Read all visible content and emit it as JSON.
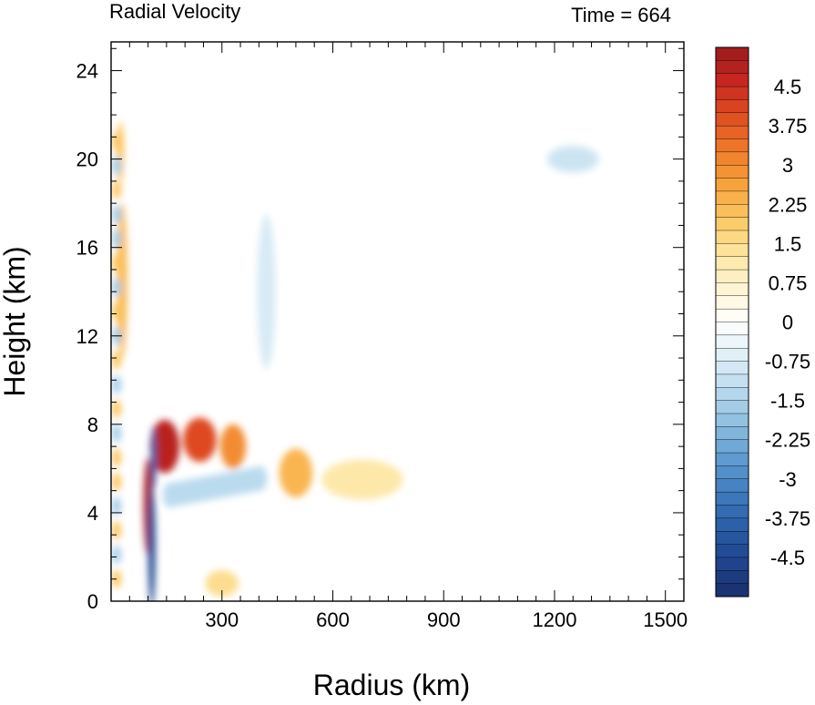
{
  "chart_data": {
    "type": "heatmap",
    "title": "Radial Velocity",
    "title_right": "Time = 664",
    "xlabel": "Radius (km)",
    "ylabel": "Height (km)",
    "xlim": [
      0,
      1550
    ],
    "ylim": [
      0,
      25.3
    ],
    "x_ticks": [
      300,
      600,
      900,
      1200,
      1500
    ],
    "y_ticks": [
      0,
      4,
      8,
      12,
      16,
      20,
      24
    ],
    "colorbar": {
      "min": -5.25,
      "max": 5.25,
      "step": 0.25,
      "label_values": [
        "4.5",
        "3.75",
        "3",
        "2.25",
        "1.5",
        "0.75",
        "0",
        "-0.75",
        "-1.5",
        "-2.25",
        "-3",
        "-3.75",
        "-4.5"
      ],
      "colors": [
        "#1a2f6b",
        "#20448e",
        "#2a5da6",
        "#3f7bbd",
        "#5f9bd0",
        "#8cbde0",
        "#b9daee",
        "#e0eff7",
        "#ffffff",
        "#fdf3d2",
        "#fde6a0",
        "#fbc863",
        "#f7a33c",
        "#ef7a2a",
        "#e04e22",
        "#c7271f",
        "#9a1b1e"
      ]
    },
    "features": [
      {
        "r": 145,
        "z": 7.0,
        "v": 4.8
      },
      {
        "r": 240,
        "z": 7.3,
        "v": 4.0
      },
      {
        "r": 330,
        "z": 7.0,
        "v": 3.0
      },
      {
        "r": 100,
        "z": 4.3,
        "v": 5.0
      },
      {
        "r": 110,
        "z": 2.5,
        "v": -4.5
      },
      {
        "r": 115,
        "z": 6.5,
        "v": -4.0
      },
      {
        "r": 30,
        "z": 14.5,
        "v": 2.2
      },
      {
        "r": 25,
        "z": 20.3,
        "v": 2.0
      },
      {
        "r": 500,
        "z": 5.8,
        "v": 2.3
      },
      {
        "r": 680,
        "z": 5.5,
        "v": 1.2
      },
      {
        "r": 1250,
        "z": 20.0,
        "v": -1.0
      },
      {
        "r": 420,
        "z": 14.0,
        "v": -0.8
      },
      {
        "r": 300,
        "z": 0.8,
        "v": 1.5
      }
    ]
  }
}
